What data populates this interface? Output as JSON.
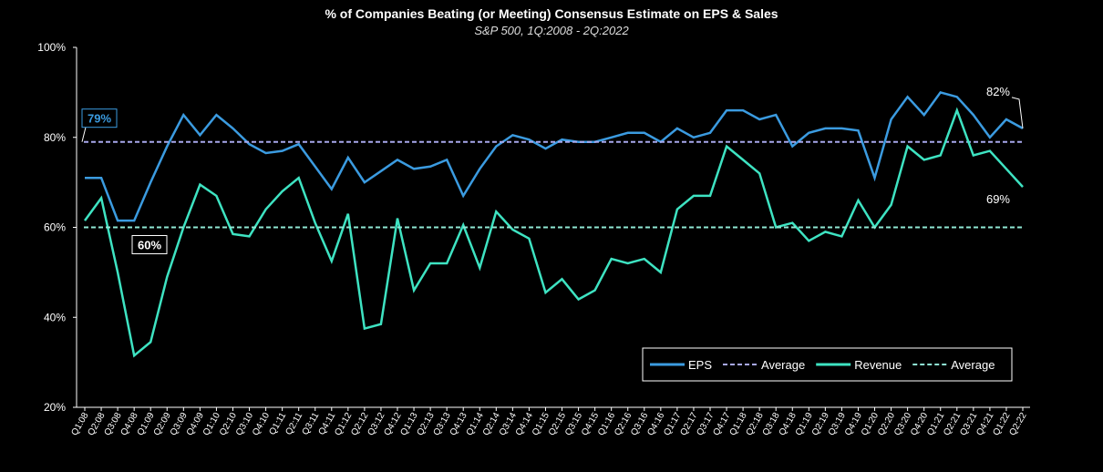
{
  "chart_data": {
    "type": "line",
    "title": "% of Companies Beating (or Meeting) Consensus Estimate on EPS & Sales",
    "subtitle": "S&P 500, 1Q:2008 - 2Q:2022",
    "categories": [
      "Q1:08",
      "Q2:08",
      "Q3:08",
      "Q4:08",
      "Q1:09",
      "Q2:09",
      "Q3:09",
      "Q4:09",
      "Q1:10",
      "Q2:10",
      "Q3:10",
      "Q4:10",
      "Q1:11",
      "Q2:11",
      "Q3:11",
      "Q4:11",
      "Q1:12",
      "Q2:12",
      "Q3:12",
      "Q4:12",
      "Q1:13",
      "Q2:13",
      "Q3:13",
      "Q4:13",
      "Q1:14",
      "Q2:14",
      "Q3:14",
      "Q4:14",
      "Q1:15",
      "Q2:15",
      "Q3:15",
      "Q4:15",
      "Q1:16",
      "Q2:16",
      "Q3:16",
      "Q4:16",
      "Q1:17",
      "Q2:17",
      "Q3:17",
      "Q4:17",
      "Q1:18",
      "Q2:18",
      "Q3:18",
      "Q4:18",
      "Q1:19",
      "Q2:19",
      "Q3:19",
      "Q4:19",
      "Q1:20",
      "Q2:20",
      "Q3:20",
      "Q4:20",
      "Q1:21",
      "Q2:21",
      "Q3:21",
      "Q4:21",
      "Q1:22",
      "Q2:22"
    ],
    "series": [
      {
        "name": "EPS",
        "color": "#3b9be0",
        "values": [
          71,
          71,
          61.5,
          61.5,
          70,
          78,
          85,
          80.5,
          85,
          82,
          78.5,
          76.5,
          77,
          78.5,
          73.5,
          68.5,
          75.5,
          70,
          72.5,
          75,
          73,
          73.5,
          75,
          67,
          73,
          78,
          80.5,
          79.5,
          77.5,
          79.5,
          79,
          79,
          80,
          81,
          81,
          79,
          82,
          80,
          81,
          86,
          86,
          84,
          85,
          78,
          81,
          82,
          82,
          81.5,
          71,
          84,
          89,
          85,
          90,
          89,
          85,
          80,
          84,
          82
        ],
        "value_labels": [
          null,
          null,
          null,
          null,
          null,
          null,
          null,
          null,
          null,
          null,
          null,
          null,
          null,
          null,
          null,
          null,
          null,
          null,
          null,
          null,
          null,
          null,
          null,
          null,
          null,
          null,
          null,
          null,
          null,
          null,
          null,
          null,
          null,
          null,
          null,
          null,
          null,
          null,
          null,
          null,
          null,
          null,
          null,
          null,
          null,
          null,
          null,
          null,
          null,
          null,
          null,
          null,
          null,
          null,
          null,
          null,
          null,
          "82%"
        ]
      },
      {
        "name": "Average",
        "color": "#a8a8ec",
        "dashed": true,
        "value": 79,
        "value_label": "79%"
      },
      {
        "name": "Revenue",
        "color": "#3ee3c2",
        "values": [
          61.5,
          66.5,
          50,
          31.5,
          34.5,
          49,
          60,
          69.5,
          67,
          58.5,
          58,
          64,
          68,
          71,
          61,
          52.5,
          63,
          37.5,
          38.5,
          62,
          46,
          52,
          52,
          60.5,
          51,
          63.5,
          59.5,
          57.5,
          45.5,
          48.5,
          44,
          46,
          53,
          52,
          53,
          50,
          64,
          67,
          67,
          78,
          75,
          72,
          60,
          61,
          57,
          59,
          58,
          66,
          60,
          65,
          78,
          75,
          76,
          86,
          76,
          77,
          73,
          69
        ],
        "value_labels": [
          null,
          null,
          null,
          null,
          null,
          null,
          null,
          null,
          null,
          null,
          null,
          null,
          null,
          null,
          null,
          null,
          null,
          null,
          null,
          null,
          null,
          null,
          null,
          null,
          null,
          null,
          null,
          null,
          null,
          null,
          null,
          null,
          null,
          null,
          null,
          null,
          null,
          null,
          null,
          null,
          null,
          null,
          null,
          null,
          null,
          null,
          null,
          null,
          null,
          null,
          null,
          null,
          null,
          null,
          null,
          null,
          null,
          "69%"
        ]
      },
      {
        "name": "Average",
        "color": "#8fe8d4",
        "dashed": true,
        "value": 60,
        "value_label": "60%"
      }
    ],
    "ylim": [
      20,
      100
    ],
    "yticks": [
      {
        "value": 20,
        "label": "20%"
      },
      {
        "value": 40,
        "label": "40%"
      },
      {
        "value": 60,
        "label": "60%"
      },
      {
        "value": 80,
        "label": "80%"
      },
      {
        "value": 100,
        "label": "100%"
      }
    ],
    "grid": false,
    "legend": "lower right"
  }
}
